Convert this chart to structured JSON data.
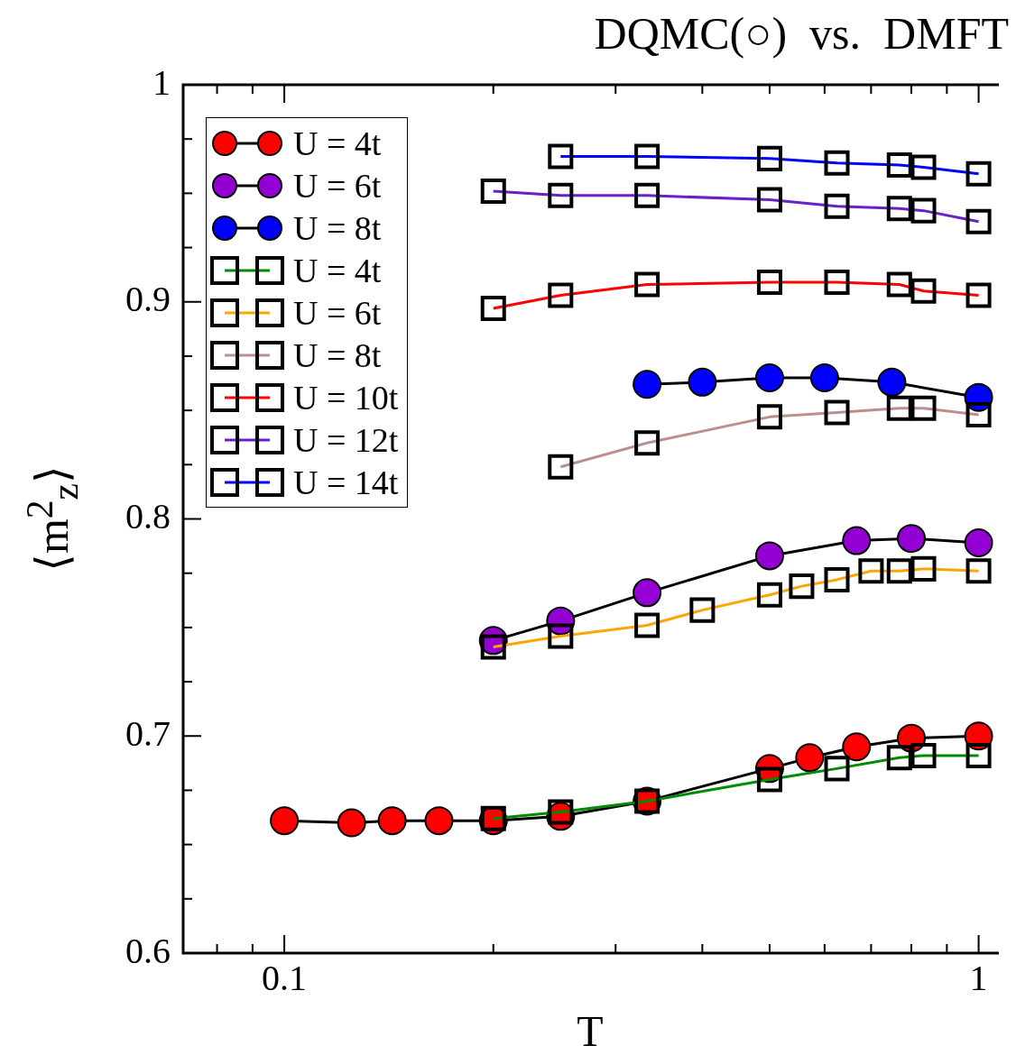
{
  "chart_data": {
    "type": "line",
    "title": "DQMC(○)  vs.  DMFT",
    "xlabel": "T",
    "ylabel": "⟨m$^{2}$$_{z}$⟩",
    "log": "x",
    "grid": false,
    "legend": "top left",
    "xlim": [
      0.0715,
      1.063
    ],
    "ylim": [
      0.6,
      1
    ],
    "xticks": [
      {
        "value": 0.08,
        "label": null
      },
      {
        "value": 0.09,
        "label": null
      },
      0.1,
      {
        "value": 0.2,
        "label": null
      },
      {
        "value": 0.3,
        "label": null
      },
      {
        "value": 0.4,
        "label": null
      },
      {
        "value": 0.5,
        "label": null
      },
      {
        "value": 0.6,
        "label": null
      },
      {
        "value": 0.7,
        "label": null
      },
      {
        "value": 0.8,
        "label": null
      },
      {
        "value": 0.9,
        "label": null
      },
      1
    ],
    "yticks": [
      0.6,
      {
        "value": 0.625,
        "label": null
      },
      {
        "value": 0.65,
        "label": null
      },
      {
        "value": 0.675,
        "label": null
      },
      0.7,
      {
        "value": 0.725,
        "label": null
      },
      {
        "value": 0.75,
        "label": null
      },
      {
        "value": 0.775,
        "label": null
      },
      0.8,
      {
        "value": 0.825,
        "label": null
      },
      {
        "value": 0.85,
        "label": null
      },
      {
        "value": 0.875,
        "label": null
      },
      0.9,
      {
        "value": 0.925,
        "label": null
      },
      {
        "value": 0.95,
        "label": null
      },
      {
        "value": 0.975,
        "label": null
      },
      1
    ],
    "series": [
      {
        "name": "U = 4t",
        "color": "#ff0000",
        "marker": "circle",
        "x": [
          0.1,
          0.125,
          0.143,
          0.167,
          0.2,
          0.25,
          0.333,
          0.5,
          0.571,
          0.667,
          0.8,
          1
        ],
        "values": [
          0.661,
          0.66,
          0.661,
          0.661,
          0.661,
          0.663,
          0.67,
          0.685,
          0.69,
          0.695,
          0.699,
          0.7
        ]
      },
      {
        "name": "U = 6t",
        "color": "#9400d3",
        "marker": "circle",
        "x": [
          0.2,
          0.25,
          0.333,
          0.5,
          0.667,
          0.8,
          1
        ],
        "values": [
          0.744,
          0.753,
          0.766,
          0.783,
          0.79,
          0.791,
          0.789
        ]
      },
      {
        "name": "U = 8t",
        "color": "#0000ff",
        "marker": "circle",
        "x": [
          0.333,
          0.4,
          0.5,
          0.6,
          0.75,
          1
        ],
        "values": [
          0.862,
          0.863,
          0.865,
          0.865,
          0.863,
          0.856
        ]
      },
      {
        "name": "U = 4t",
        "color": "#008b00",
        "marker": "square",
        "x": [
          0.2,
          0.25,
          0.333,
          0.5,
          0.625,
          0.769,
          0.833,
          1
        ],
        "values": [
          0.662,
          0.665,
          0.67,
          0.68,
          0.685,
          0.69,
          0.691,
          0.691
        ]
      },
      {
        "name": "U = 6t",
        "color": "#ffa500",
        "marker": "square",
        "x": [
          0.2,
          0.25,
          0.333,
          0.4,
          0.5,
          0.556,
          0.625,
          0.7,
          0.769,
          0.833,
          1
        ],
        "values": [
          0.741,
          0.746,
          0.751,
          0.758,
          0.765,
          0.769,
          0.772,
          0.776,
          0.776,
          0.777,
          0.776
        ]
      },
      {
        "name": "U = 8t",
        "color": "#bc8f8f",
        "marker": "square",
        "x": [
          0.25,
          0.333,
          0.5,
          0.625,
          0.769,
          0.833,
          1
        ],
        "values": [
          0.824,
          0.835,
          0.847,
          0.849,
          0.851,
          0.851,
          0.848
        ]
      },
      {
        "name": "U = 10t",
        "color": "#ff0000",
        "marker": "square",
        "x": [
          0.2,
          0.25,
          0.333,
          0.5,
          0.625,
          0.769,
          0.833,
          1
        ],
        "values": [
          0.897,
          0.903,
          0.908,
          0.909,
          0.909,
          0.908,
          0.905,
          0.903
        ]
      },
      {
        "name": "U = 12t",
        "color": "#6a1fc8",
        "marker": "square",
        "x": [
          0.2,
          0.25,
          0.333,
          0.5,
          0.625,
          0.769,
          0.833,
          1
        ],
        "values": [
          0.951,
          0.949,
          0.949,
          0.947,
          0.944,
          0.943,
          0.942,
          0.937
        ]
      },
      {
        "name": "U = 14t",
        "color": "#0000ff",
        "marker": "square",
        "x": [
          0.25,
          0.333,
          0.5,
          0.625,
          0.769,
          0.833,
          1
        ],
        "values": [
          0.967,
          0.967,
          0.966,
          0.964,
          0.963,
          0.962,
          0.959
        ]
      }
    ]
  }
}
